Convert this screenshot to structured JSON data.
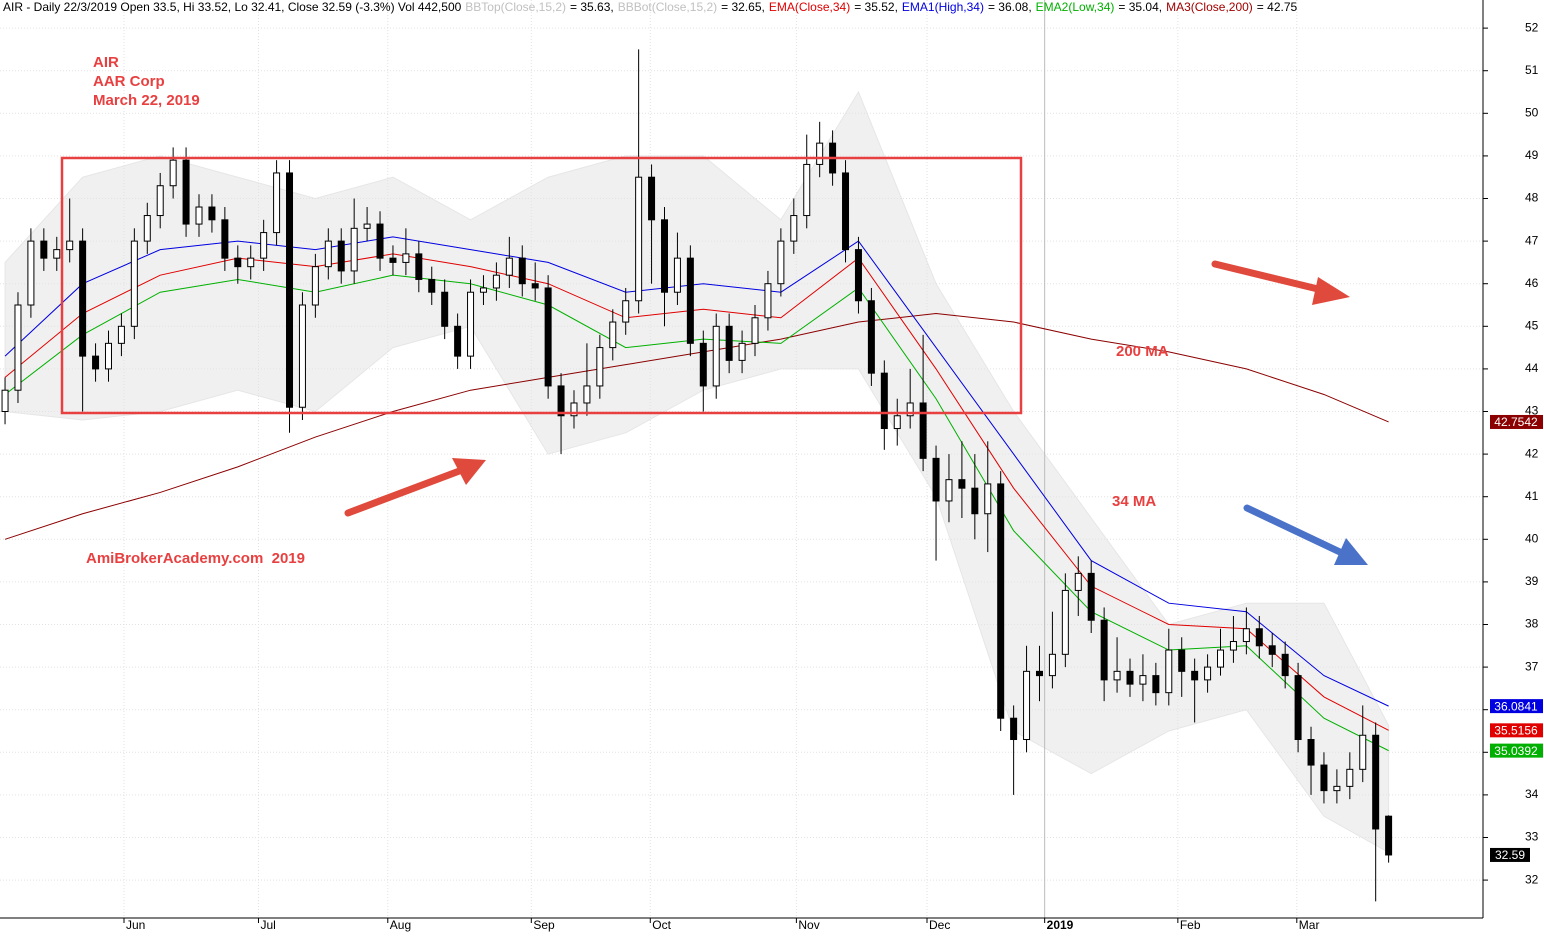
{
  "chart_data": {
    "type": "candlestick",
    "header": [
      {
        "text": "AIR - Daily 22/3/2019 Open 33.5, Hi 33.52, Lo 32.41, Close 32.59 (-3.3%) Vol 442,500",
        "color": "#000000"
      },
      {
        "text": "BBTop(Close,15,2)",
        "color": "#c0c0c0"
      },
      {
        "text": "= 35.63,",
        "color": "#000000"
      },
      {
        "text": "BBBot(Close,15,2)",
        "color": "#c0c0c0"
      },
      {
        "text": "= 32.65,",
        "color": "#000000"
      },
      {
        "text": "EMA(Close,34)",
        "color": "#e00000"
      },
      {
        "text": "= 35.52,",
        "color": "#000000"
      },
      {
        "text": "EMA1(High,34)",
        "color": "#0000e0"
      },
      {
        "text": "= 36.08,",
        "color": "#000000"
      },
      {
        "text": "EMA2(Low,34)",
        "color": "#00b000"
      },
      {
        "text": "= 35.04,",
        "color": "#000000"
      },
      {
        "text": "MA3(Close,200)",
        "color": "#a00000"
      },
      {
        "text": "= 42.75",
        "color": "#000000"
      }
    ],
    "annotations": [
      "AIR",
      "AAR Corp",
      "March 22, 2019",
      "AmiBrokerAcademy.com  2019",
      "200 MA",
      "34 MA"
    ],
    "xlim": [
      -0.39,
      114.3
    ],
    "ylim": [
      31.11,
      52.66
    ],
    "yticks": [
      32,
      33,
      34,
      35,
      36,
      37,
      38,
      39,
      40,
      41,
      42,
      43,
      44,
      45,
      46,
      47,
      48,
      49,
      50,
      51,
      52
    ],
    "xticks": [
      {
        "value": 9.2,
        "label": "Jun"
      },
      {
        "value": 19.6,
        "label": "Jul"
      },
      {
        "value": 29.6,
        "label": "Aug"
      },
      {
        "value": 40.7,
        "label": "Sep"
      },
      {
        "value": 49.9,
        "label": "Oct"
      },
      {
        "value": 61.2,
        "label": "Nov"
      },
      {
        "value": 71.3,
        "label": "Dec"
      },
      {
        "value": 80.4,
        "label": "2019"
      },
      {
        "value": 90.7,
        "label": "Feb"
      },
      {
        "value": 99.9,
        "label": "Mar"
      }
    ],
    "grid": true,
    "last_label": "32.59",
    "open": [
      43.0,
      43.5,
      45.5,
      47.0,
      46.6,
      46.8,
      47.0,
      44.3,
      44.0,
      44.6,
      45.0,
      47.0,
      47.6,
      48.3,
      48.9,
      47.4,
      47.8,
      47.5,
      46.6,
      46.4,
      46.6,
      47.2,
      48.6,
      43.1,
      45.5,
      46.4,
      47.0,
      46.3,
      47.3,
      47.4,
      46.6,
      46.5,
      46.7,
      46.1,
      45.8,
      45.0,
      44.3,
      45.8,
      45.9,
      46.2,
      46.6,
      46.0,
      45.9,
      43.6,
      42.9,
      43.2,
      43.6,
      44.5,
      45.1,
      45.6,
      48.5,
      47.5,
      45.8,
      46.6,
      44.6,
      43.6,
      45.0,
      44.2,
      44.6,
      45.2,
      46.0,
      47.0,
      47.6,
      48.8,
      49.3,
      48.6,
      46.8,
      45.6,
      43.9,
      42.6,
      42.9,
      43.2,
      41.9,
      40.9,
      41.4,
      41.2,
      40.6,
      41.3,
      35.8,
      35.3,
      36.9,
      36.8,
      37.3,
      38.8,
      39.2,
      38.1,
      36.7,
      36.9,
      36.6,
      36.8,
      36.4,
      37.4,
      36.9,
      36.7,
      37.0,
      37.4,
      37.6,
      37.9,
      37.5,
      37.3,
      36.8,
      35.3,
      34.7,
      34.1,
      34.2,
      34.6,
      35.4,
      33.5
    ],
    "high": [
      43.8,
      45.8,
      47.3,
      47.3,
      47.1,
      48.0,
      47.3,
      44.6,
      44.9,
      45.3,
      47.3,
      47.9,
      48.6,
      49.2,
      49.2,
      48.1,
      48.1,
      47.8,
      46.9,
      46.9,
      47.5,
      48.9,
      48.9,
      45.8,
      46.7,
      47.3,
      47.3,
      48.0,
      47.8,
      47.7,
      46.9,
      47.3,
      47.0,
      46.4,
      46.1,
      45.3,
      46.1,
      46.2,
      46.5,
      47.1,
      46.9,
      46.5,
      46.2,
      43.9,
      43.5,
      44.6,
      44.8,
      45.4,
      45.9,
      51.5,
      48.8,
      47.8,
      47.2,
      46.9,
      44.9,
      45.3,
      45.3,
      44.9,
      45.5,
      46.3,
      47.3,
      48.0,
      49.5,
      49.8,
      49.6,
      48.9,
      47.1,
      45.9,
      44.2,
      43.3,
      44.0,
      44.8,
      42.2,
      42.0,
      42.3,
      42.0,
      42.3,
      41.6,
      36.1,
      37.5,
      37.5,
      38.3,
      39.2,
      39.6,
      39.5,
      38.4,
      37.7,
      37.2,
      37.3,
      37.1,
      37.9,
      37.7,
      37.2,
      37.3,
      37.9,
      38.2,
      38.4,
      38.2,
      37.8,
      37.6,
      37.1,
      35.6,
      35.0,
      34.6,
      35.0,
      36.1,
      35.7,
      33.52
    ],
    "low": [
      42.7,
      43.2,
      45.2,
      46.3,
      46.3,
      46.5,
      43.0,
      43.7,
      43.7,
      44.3,
      44.7,
      46.7,
      47.3,
      48.0,
      47.1,
      47.1,
      47.2,
      46.3,
      46.0,
      46.1,
      46.3,
      46.9,
      42.5,
      42.8,
      45.2,
      46.1,
      46.0,
      46.0,
      47.0,
      46.3,
      46.2,
      46.2,
      45.8,
      45.5,
      44.7,
      44.0,
      44.0,
      45.5,
      45.6,
      45.9,
      45.7,
      45.6,
      43.3,
      42.0,
      42.6,
      42.9,
      43.3,
      44.2,
      44.8,
      45.3,
      46.0,
      45.0,
      45.5,
      44.3,
      43.0,
      43.3,
      43.9,
      43.9,
      44.3,
      44.9,
      45.7,
      46.7,
      47.3,
      48.5,
      48.3,
      46.5,
      45.3,
      43.6,
      42.1,
      42.2,
      42.6,
      41.6,
      39.5,
      40.4,
      40.5,
      40.0,
      39.7,
      35.5,
      34.0,
      35.0,
      36.2,
      36.5,
      37.0,
      38.2,
      37.8,
      36.2,
      36.4,
      36.3,
      36.2,
      36.1,
      36.1,
      36.3,
      35.7,
      36.4,
      36.8,
      37.1,
      37.3,
      37.2,
      37.0,
      36.5,
      35.0,
      34.0,
      33.8,
      33.8,
      33.9,
      34.3,
      31.5,
      32.41
    ],
    "close": [
      43.5,
      45.5,
      47.0,
      46.6,
      46.8,
      47.0,
      44.3,
      44.0,
      44.6,
      45.0,
      47.0,
      47.6,
      48.3,
      48.9,
      47.4,
      47.8,
      47.5,
      46.6,
      46.4,
      46.6,
      47.2,
      48.6,
      43.1,
      45.5,
      46.4,
      47.0,
      46.3,
      47.3,
      47.4,
      46.6,
      46.5,
      46.7,
      46.1,
      45.8,
      45.0,
      44.3,
      45.8,
      45.9,
      46.2,
      46.6,
      46.0,
      45.9,
      43.6,
      42.9,
      43.2,
      43.6,
      44.5,
      45.1,
      45.6,
      48.5,
      47.5,
      45.8,
      46.6,
      44.6,
      43.6,
      45.0,
      44.2,
      44.6,
      45.2,
      46.0,
      47.0,
      47.6,
      48.8,
      49.3,
      48.6,
      46.8,
      45.6,
      43.9,
      42.6,
      42.9,
      43.2,
      41.9,
      40.9,
      41.4,
      41.2,
      40.6,
      41.3,
      35.8,
      35.3,
      36.9,
      36.8,
      37.3,
      38.8,
      39.2,
      38.1,
      36.7,
      36.9,
      36.6,
      36.8,
      36.4,
      37.4,
      36.9,
      36.7,
      37.0,
      37.4,
      37.6,
      37.9,
      37.5,
      37.3,
      36.8,
      35.3,
      34.7,
      34.1,
      34.2,
      34.6,
      35.4,
      33.2,
      32.59
    ],
    "band": {
      "x": [
        0,
        6,
        12,
        18,
        24,
        30,
        36,
        42,
        48,
        54,
        60,
        66,
        72,
        78,
        84,
        90,
        96,
        102,
        107
      ],
      "top": [
        46.5,
        48.5,
        49.0,
        48.5,
        48.0,
        48.5,
        47.5,
        48.5,
        49.0,
        49.0,
        47.5,
        50.5,
        46.0,
        43.0,
        40.5,
        38.0,
        38.5,
        38.5,
        35.63
      ],
      "bottom": [
        43.0,
        42.8,
        43.0,
        43.5,
        43.0,
        44.5,
        45.0,
        42.0,
        42.5,
        43.5,
        44.0,
        44.0,
        41.0,
        35.5,
        34.5,
        35.5,
        36.0,
        33.5,
        32.65
      ],
      "color": "#f0f0f0"
    },
    "series": [
      {
        "name": "MA3(Close,200)",
        "color": "#8b0000",
        "end_label": "42.7542",
        "x": [
          0,
          6,
          12,
          18,
          24,
          30,
          36,
          42,
          48,
          54,
          60,
          66,
          72,
          78,
          84,
          90,
          96,
          102,
          107
        ],
        "values": [
          40.0,
          40.6,
          41.1,
          41.7,
          42.4,
          43.0,
          43.5,
          43.8,
          44.1,
          44.4,
          44.7,
          45.1,
          45.3,
          45.1,
          44.7,
          44.4,
          44.0,
          43.4,
          42.7542
        ]
      },
      {
        "name": "EMA1(High,34)",
        "color": "#0000e0",
        "end_label": "36.0841",
        "x": [
          0,
          6,
          12,
          18,
          24,
          30,
          36,
          42,
          48,
          54,
          60,
          66,
          72,
          78,
          84,
          90,
          96,
          102,
          107
        ],
        "values": [
          44.3,
          46.0,
          46.8,
          47.0,
          46.8,
          47.1,
          46.8,
          46.5,
          45.8,
          46.0,
          45.8,
          47.0,
          44.5,
          42.0,
          39.5,
          38.5,
          38.3,
          36.8,
          36.0841
        ]
      },
      {
        "name": "EMA(Close,34)",
        "color": "#e00000",
        "end_label": "35.5156",
        "x": [
          0,
          6,
          12,
          18,
          24,
          30,
          36,
          42,
          48,
          54,
          60,
          66,
          72,
          78,
          84,
          90,
          96,
          102,
          107
        ],
        "values": [
          43.8,
          45.3,
          46.2,
          46.6,
          46.4,
          46.7,
          46.4,
          46.0,
          45.2,
          45.4,
          45.2,
          46.6,
          44.0,
          41.2,
          38.9,
          38.0,
          37.9,
          36.3,
          35.5156
        ]
      },
      {
        "name": "EMA2(Low,34)",
        "color": "#00b000",
        "end_label": "35.0392",
        "x": [
          0,
          6,
          12,
          18,
          24,
          30,
          36,
          42,
          48,
          54,
          60,
          66,
          72,
          78,
          84,
          90,
          96,
          102,
          107
        ],
        "values": [
          43.4,
          44.8,
          45.8,
          46.1,
          45.8,
          46.2,
          46.0,
          45.5,
          44.5,
          44.7,
          44.6,
          45.9,
          43.3,
          40.2,
          38.3,
          37.4,
          37.5,
          35.8,
          35.0392
        ]
      }
    ]
  }
}
